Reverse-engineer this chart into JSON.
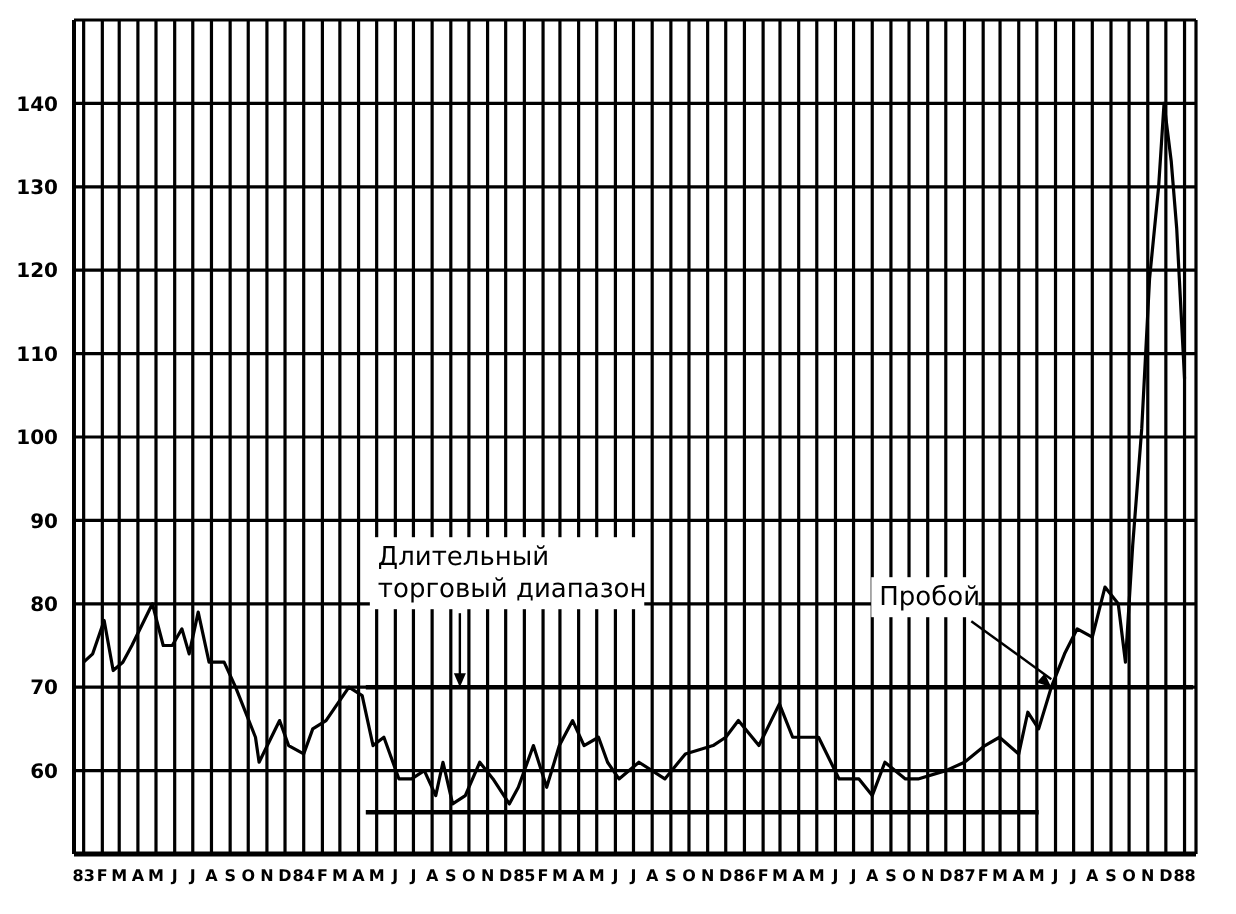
{
  "chart_data": {
    "type": "line",
    "xlim": [
      "1982-12-16",
      "1988-01-20"
    ],
    "ylim": [
      50,
      150
    ],
    "yticks": [
      60,
      70,
      80,
      90,
      100,
      110,
      120,
      130,
      140
    ],
    "xticks": [
      {
        "value": "1983-01",
        "label": "83"
      },
      {
        "value": "1983-02",
        "label": "F"
      },
      {
        "value": "1983-03",
        "label": "M"
      },
      {
        "value": "1983-04",
        "label": "A"
      },
      {
        "value": "1983-05",
        "label": "M"
      },
      {
        "value": "1983-06",
        "label": "J"
      },
      {
        "value": "1983-07",
        "label": "J"
      },
      {
        "value": "1983-08",
        "label": "A"
      },
      {
        "value": "1983-09",
        "label": "S"
      },
      {
        "value": "1983-10",
        "label": "O"
      },
      {
        "value": "1983-11",
        "label": "N"
      },
      {
        "value": "1983-12",
        "label": "D"
      },
      {
        "value": "1984-01",
        "label": "84"
      },
      {
        "value": "1984-02",
        "label": "F"
      },
      {
        "value": "1984-03",
        "label": "M"
      },
      {
        "value": "1984-04",
        "label": "A"
      },
      {
        "value": "1984-05",
        "label": "M"
      },
      {
        "value": "1984-06",
        "label": "J"
      },
      {
        "value": "1984-07",
        "label": "J"
      },
      {
        "value": "1984-08",
        "label": "A"
      },
      {
        "value": "1984-09",
        "label": "S"
      },
      {
        "value": "1984-10",
        "label": "O"
      },
      {
        "value": "1984-11",
        "label": "N"
      },
      {
        "value": "1984-12",
        "label": "D"
      },
      {
        "value": "1985-01",
        "label": "85"
      },
      {
        "value": "1985-02",
        "label": "F"
      },
      {
        "value": "1985-03",
        "label": "M"
      },
      {
        "value": "1985-04",
        "label": "A"
      },
      {
        "value": "1985-05",
        "label": "M"
      },
      {
        "value": "1985-06",
        "label": "J"
      },
      {
        "value": "1985-07",
        "label": "J"
      },
      {
        "value": "1985-08",
        "label": "A"
      },
      {
        "value": "1985-09",
        "label": "S"
      },
      {
        "value": "1985-10",
        "label": "O"
      },
      {
        "value": "1985-11",
        "label": "N"
      },
      {
        "value": "1985-12",
        "label": "D"
      },
      {
        "value": "1986-01",
        "label": "86"
      },
      {
        "value": "1986-02",
        "label": "F"
      },
      {
        "value": "1986-03",
        "label": "M"
      },
      {
        "value": "1986-04",
        "label": "A"
      },
      {
        "value": "1986-05",
        "label": "M"
      },
      {
        "value": "1986-06",
        "label": "J"
      },
      {
        "value": "1986-07",
        "label": "J"
      },
      {
        "value": "1986-08",
        "label": "A"
      },
      {
        "value": "1986-09",
        "label": "S"
      },
      {
        "value": "1986-10",
        "label": "O"
      },
      {
        "value": "1986-11",
        "label": "N"
      },
      {
        "value": "1986-12",
        "label": "D"
      },
      {
        "value": "1987-01",
        "label": "87"
      },
      {
        "value": "1987-02",
        "label": "F"
      },
      {
        "value": "1987-03",
        "label": "M"
      },
      {
        "value": "1987-04",
        "label": "A"
      },
      {
        "value": "1987-05",
        "label": "M"
      },
      {
        "value": "1987-06",
        "label": "J"
      },
      {
        "value": "1987-07",
        "label": "J"
      },
      {
        "value": "1987-08",
        "label": "A"
      },
      {
        "value": "1987-09",
        "label": "S"
      },
      {
        "value": "1987-10",
        "label": "O"
      },
      {
        "value": "1987-11",
        "label": "N"
      },
      {
        "value": "1987-12",
        "label": "D"
      },
      {
        "value": "1988-01",
        "label": "88"
      }
    ],
    "grid": true,
    "series": [
      {
        "type": "line",
        "color": "#000000",
        "x": [
          "1983-01-01",
          "1983-01-16",
          "1983-02-04",
          "1983-02-19",
          "1983-03-07",
          "1983-03-22",
          "1983-04-25",
          "1983-05-13",
          "1983-05-28",
          "1983-06-13",
          "1983-06-25",
          "1983-07-10",
          "1983-07-28",
          "1983-08-22",
          "1983-09-10",
          "1983-10-13",
          "1983-10-19",
          "1983-11-22",
          "1983-12-07",
          "1984-01-01",
          "1984-01-16",
          "1984-02-07",
          "1984-03-16",
          "1984-04-07",
          "1984-04-25",
          "1984-05-13",
          "1984-06-07",
          "1984-06-28",
          "1984-07-19",
          "1984-08-07",
          "1984-08-19",
          "1984-09-04",
          "1984-09-25",
          "1984-10-19",
          "1984-11-10",
          "1984-12-07",
          "1984-12-22",
          "1985-01-16",
          "1985-02-07",
          "1985-02-28",
          "1985-03-22",
          "1985-04-10",
          "1985-05-04",
          "1985-05-19",
          "1985-06-07",
          "1985-07-10",
          "1985-08-22",
          "1985-09-25",
          "1985-11-10",
          "1985-12-01",
          "1985-12-22",
          "1986-01-25",
          "1986-02-28",
          "1986-03-22",
          "1986-05-04",
          "1986-06-07",
          "1986-07-10",
          "1986-08-01",
          "1986-08-22",
          "1986-09-25",
          "1986-10-16",
          "1986-12-01",
          "1987-01-01",
          "1987-02-04",
          "1987-02-28",
          "1987-04-01",
          "1987-04-16",
          "1987-05-04",
          "1987-05-25",
          "1987-06-16",
          "1987-07-07",
          "1987-08-01",
          "1987-08-22",
          "1987-09-13",
          "1987-09-25",
          "1987-10-07",
          "1987-10-22",
          "1987-11-04",
          "1987-11-19",
          "1987-11-28",
          "1987-12-10",
          "1987-12-19",
          "1988-01-01"
        ],
        "values": [
          73,
          74,
          78,
          72,
          73,
          75,
          80,
          75,
          75,
          77,
          74,
          79,
          73,
          73,
          70,
          64,
          61,
          66,
          63,
          62,
          65,
          66,
          70,
          69,
          63,
          64,
          59,
          59,
          60,
          57,
          61,
          56,
          57,
          61,
          59,
          56,
          58,
          63,
          58,
          63,
          66,
          63,
          64,
          61,
          59,
          61,
          59,
          62,
          63,
          64,
          66,
          63,
          68,
          64,
          64,
          59,
          59,
          57,
          61,
          59,
          59,
          60,
          61,
          63,
          64,
          62,
          67,
          65,
          70,
          74,
          77,
          76,
          82,
          80,
          73,
          87,
          101,
          119,
          130,
          140,
          133,
          125,
          107
        ]
      },
      {
        "type": "line",
        "color": "#000000",
        "x": [
          "1984-04-13",
          "1988-01-15"
        ],
        "values": [
          70,
          70
        ]
      },
      {
        "type": "line",
        "color": "#000000",
        "x": [
          "1984-04-13",
          "1987-05-04"
        ],
        "values": [
          55,
          55
        ]
      }
    ],
    "annotations": [
      {
        "text": "Длительный\nторговый диапазон",
        "x": "1984-09-16",
        "y": 70
      },
      {
        "text": "Пробой",
        "x": "1987-05-25",
        "y": 70
      }
    ]
  }
}
